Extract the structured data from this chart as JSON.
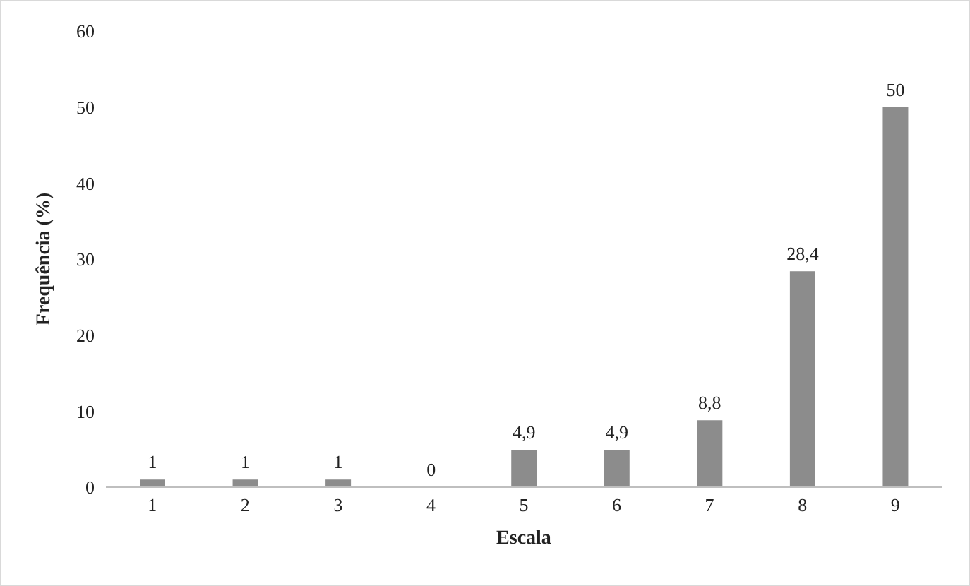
{
  "chart_data": {
    "type": "bar",
    "xlabel": "Escala",
    "ylabel": "Frequência (%)",
    "categories": [
      "1",
      "2",
      "3",
      "4",
      "5",
      "6",
      "7",
      "8",
      "9"
    ],
    "values": [
      1,
      1,
      1,
      0,
      4.9,
      4.9,
      8.8,
      28.4,
      50
    ],
    "value_labels": [
      "1",
      "1",
      "1",
      "0",
      "4,9",
      "4,9",
      "8,8",
      "28,4",
      "50"
    ],
    "color": "#8c8c8c",
    "ylim": [
      0,
      60
    ],
    "yticks": [
      0,
      10,
      20,
      30,
      40,
      50,
      60
    ],
    "grid": false,
    "legend": false
  }
}
